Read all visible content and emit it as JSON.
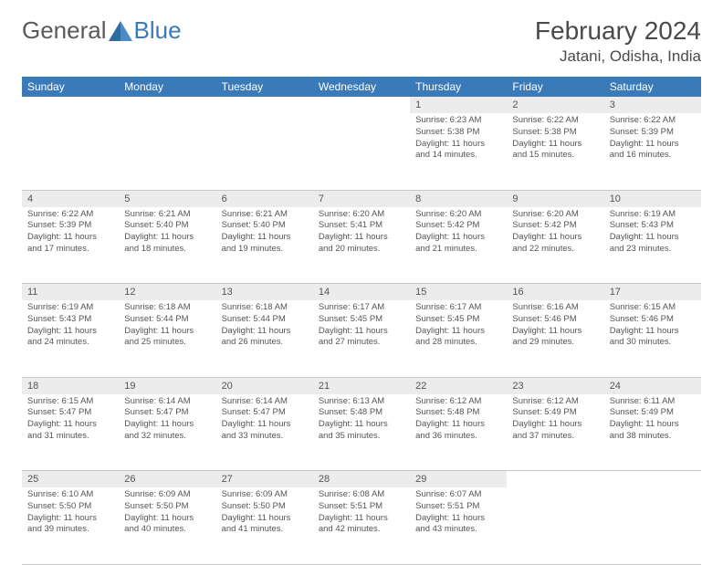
{
  "brand": {
    "textA": "General",
    "textB": "Blue"
  },
  "title": "February 2024",
  "location": "Jatani, Odisha, India",
  "colors": {
    "header_bg": "#3a7ab8",
    "header_text": "#ffffff",
    "daynum_bg": "#ececec",
    "text": "#555555",
    "border": "#c8c8c8",
    "background": "#ffffff"
  },
  "weekdays": [
    "Sunday",
    "Monday",
    "Tuesday",
    "Wednesday",
    "Thursday",
    "Friday",
    "Saturday"
  ],
  "weeks": [
    [
      null,
      null,
      null,
      null,
      {
        "n": "1",
        "sr": "6:23 AM",
        "ss": "5:38 PM",
        "dl": "11 hours and 14 minutes."
      },
      {
        "n": "2",
        "sr": "6:22 AM",
        "ss": "5:38 PM",
        "dl": "11 hours and 15 minutes."
      },
      {
        "n": "3",
        "sr": "6:22 AM",
        "ss": "5:39 PM",
        "dl": "11 hours and 16 minutes."
      }
    ],
    [
      {
        "n": "4",
        "sr": "6:22 AM",
        "ss": "5:39 PM",
        "dl": "11 hours and 17 minutes."
      },
      {
        "n": "5",
        "sr": "6:21 AM",
        "ss": "5:40 PM",
        "dl": "11 hours and 18 minutes."
      },
      {
        "n": "6",
        "sr": "6:21 AM",
        "ss": "5:40 PM",
        "dl": "11 hours and 19 minutes."
      },
      {
        "n": "7",
        "sr": "6:20 AM",
        "ss": "5:41 PM",
        "dl": "11 hours and 20 minutes."
      },
      {
        "n": "8",
        "sr": "6:20 AM",
        "ss": "5:42 PM",
        "dl": "11 hours and 21 minutes."
      },
      {
        "n": "9",
        "sr": "6:20 AM",
        "ss": "5:42 PM",
        "dl": "11 hours and 22 minutes."
      },
      {
        "n": "10",
        "sr": "6:19 AM",
        "ss": "5:43 PM",
        "dl": "11 hours and 23 minutes."
      }
    ],
    [
      {
        "n": "11",
        "sr": "6:19 AM",
        "ss": "5:43 PM",
        "dl": "11 hours and 24 minutes."
      },
      {
        "n": "12",
        "sr": "6:18 AM",
        "ss": "5:44 PM",
        "dl": "11 hours and 25 minutes."
      },
      {
        "n": "13",
        "sr": "6:18 AM",
        "ss": "5:44 PM",
        "dl": "11 hours and 26 minutes."
      },
      {
        "n": "14",
        "sr": "6:17 AM",
        "ss": "5:45 PM",
        "dl": "11 hours and 27 minutes."
      },
      {
        "n": "15",
        "sr": "6:17 AM",
        "ss": "5:45 PM",
        "dl": "11 hours and 28 minutes."
      },
      {
        "n": "16",
        "sr": "6:16 AM",
        "ss": "5:46 PM",
        "dl": "11 hours and 29 minutes."
      },
      {
        "n": "17",
        "sr": "6:15 AM",
        "ss": "5:46 PM",
        "dl": "11 hours and 30 minutes."
      }
    ],
    [
      {
        "n": "18",
        "sr": "6:15 AM",
        "ss": "5:47 PM",
        "dl": "11 hours and 31 minutes."
      },
      {
        "n": "19",
        "sr": "6:14 AM",
        "ss": "5:47 PM",
        "dl": "11 hours and 32 minutes."
      },
      {
        "n": "20",
        "sr": "6:14 AM",
        "ss": "5:47 PM",
        "dl": "11 hours and 33 minutes."
      },
      {
        "n": "21",
        "sr": "6:13 AM",
        "ss": "5:48 PM",
        "dl": "11 hours and 35 minutes."
      },
      {
        "n": "22",
        "sr": "6:12 AM",
        "ss": "5:48 PM",
        "dl": "11 hours and 36 minutes."
      },
      {
        "n": "23",
        "sr": "6:12 AM",
        "ss": "5:49 PM",
        "dl": "11 hours and 37 minutes."
      },
      {
        "n": "24",
        "sr": "6:11 AM",
        "ss": "5:49 PM",
        "dl": "11 hours and 38 minutes."
      }
    ],
    [
      {
        "n": "25",
        "sr": "6:10 AM",
        "ss": "5:50 PM",
        "dl": "11 hours and 39 minutes."
      },
      {
        "n": "26",
        "sr": "6:09 AM",
        "ss": "5:50 PM",
        "dl": "11 hours and 40 minutes."
      },
      {
        "n": "27",
        "sr": "6:09 AM",
        "ss": "5:50 PM",
        "dl": "11 hours and 41 minutes."
      },
      {
        "n": "28",
        "sr": "6:08 AM",
        "ss": "5:51 PM",
        "dl": "11 hours and 42 minutes."
      },
      {
        "n": "29",
        "sr": "6:07 AM",
        "ss": "5:51 PM",
        "dl": "11 hours and 43 minutes."
      },
      null,
      null
    ]
  ],
  "labels": {
    "sunrise": "Sunrise:",
    "sunset": "Sunset:",
    "daylight": "Daylight:"
  }
}
